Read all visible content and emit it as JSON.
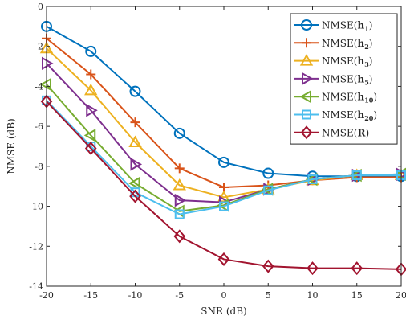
{
  "chart_data": {
    "type": "line",
    "xlabel": "SNR (dB)",
    "ylabel": "NMSE (dB)",
    "xlim": [
      -20,
      20
    ],
    "ylim": [
      -14,
      0
    ],
    "xticks": [
      -20,
      -15,
      -10,
      -5,
      0,
      5,
      10,
      15,
      20
    ],
    "yticks": [
      0,
      -2,
      -4,
      -6,
      -8,
      -10,
      -12,
      -14
    ],
    "grid": false,
    "legend_position": "top-right",
    "x": [
      -20,
      -15,
      -10,
      -5,
      0,
      5,
      10,
      15,
      20
    ],
    "series": [
      {
        "name": "NMSE(h",
        "sub": "1",
        "close": ")",
        "color": "#0072BD",
        "marker": "circle",
        "values": [
          -1.0,
          -2.25,
          -4.25,
          -6.35,
          -7.8,
          -8.35,
          -8.5,
          -8.5,
          -8.5
        ]
      },
      {
        "name": "NMSE(h",
        "sub": "2",
        "close": ")",
        "color": "#D95319",
        "marker": "plus",
        "values": [
          -1.6,
          -3.4,
          -5.8,
          -8.1,
          -9.05,
          -8.95,
          -8.7,
          -8.55,
          -8.55
        ]
      },
      {
        "name": "NMSE(h",
        "sub": "3",
        "close": ")",
        "color": "#EDB120",
        "marker": "triangle-up",
        "values": [
          -2.1,
          -4.2,
          -6.8,
          -8.95,
          -9.55,
          -9.15,
          -8.7,
          -8.45,
          -8.45
        ]
      },
      {
        "name": "NMSE(h",
        "sub": "5",
        "close": ")",
        "color": "#7E2F8E",
        "marker": "triangle-right",
        "values": [
          -2.85,
          -5.2,
          -7.9,
          -9.7,
          -9.8,
          -9.15,
          -8.65,
          -8.45,
          -8.4
        ]
      },
      {
        "name": "NMSE(h",
        "sub": "10",
        "close": ")",
        "color": "#77AC30",
        "marker": "triangle-left",
        "values": [
          -3.9,
          -6.45,
          -8.85,
          -10.25,
          -9.95,
          -9.15,
          -8.65,
          -8.45,
          -8.4
        ]
      },
      {
        "name": "NMSE(h",
        "sub": "20",
        "close": ")",
        "color": "#4DBEEE",
        "marker": "square",
        "values": [
          -4.7,
          -7.0,
          -9.3,
          -10.4,
          -10.0,
          -9.2,
          -8.65,
          -8.45,
          -8.45
        ]
      },
      {
        "name": "NMSE(R",
        "sub": "",
        "close": ")",
        "color": "#A2142F",
        "marker": "diamond",
        "values": [
          -4.75,
          -7.1,
          -9.5,
          -11.5,
          -12.65,
          -13.0,
          -13.1,
          -13.1,
          -13.15
        ]
      }
    ]
  }
}
